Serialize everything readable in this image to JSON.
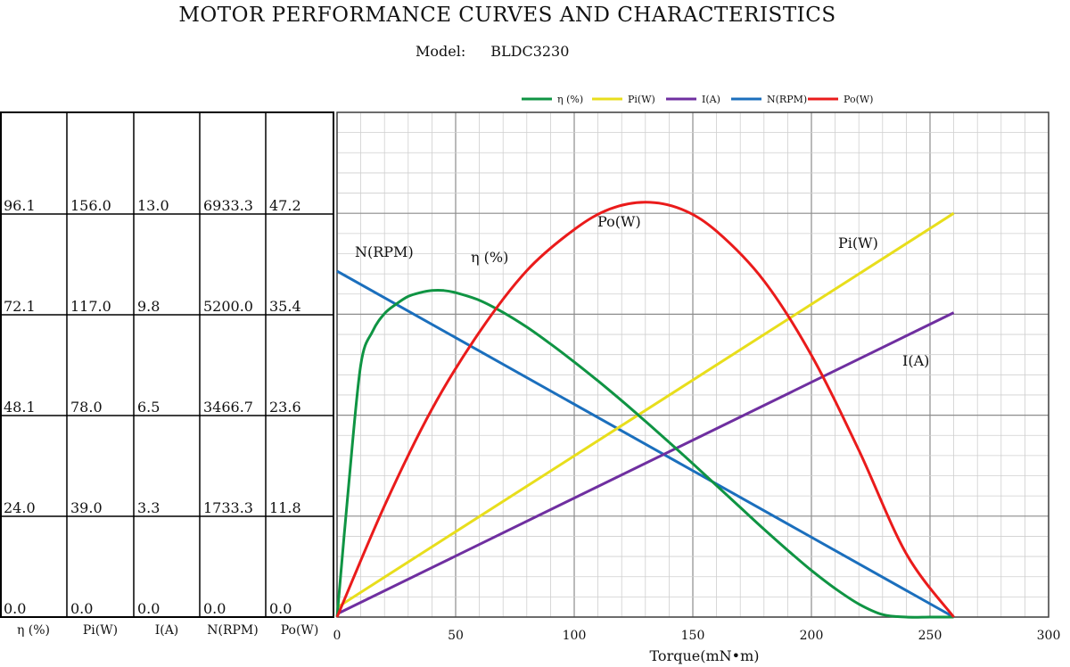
{
  "header": {
    "title": "MOTOR PERFORMANCE CURVES AND CHARACTERISTICS",
    "model_label": "Model:",
    "model_value": "BLDC3230"
  },
  "colors": {
    "efficiency": "#0f9443",
    "input_power": "#e8de1c",
    "current": "#6f2fa0",
    "speed": "#1b6fbd",
    "output_power": "#ea1b1b"
  },
  "legend": [
    "η (%)",
    "Pi(W)",
    "I(A)",
    "N(RPM)",
    "Po(W)"
  ],
  "value_table": {
    "columns": [
      "η (%)",
      "Pi(W)",
      "I(A)",
      "N(RPM)",
      "Po(W)"
    ],
    "rows": [
      [
        "96.1",
        "156.0",
        "13.0",
        "6933.3",
        "47.2"
      ],
      [
        "72.1",
        "117.0",
        "9.8",
        "5200.0",
        "35.4"
      ],
      [
        "48.1",
        "78.0",
        "6.5",
        "3466.7",
        "23.6"
      ],
      [
        "24.0",
        "39.0",
        "3.3",
        "1733.3",
        "11.8"
      ],
      [
        "0.0",
        "0.0",
        "0.0",
        "0.0",
        "0.0"
      ]
    ]
  },
  "chart_data": {
    "type": "line",
    "title": "MOTOR PERFORMANCE CURVES AND CHARACTERISTICS",
    "subtitle": "Model: BLDC3230",
    "xlabel": "Torque(mN•m)",
    "xlim": [
      0,
      300
    ],
    "x_ticks": [
      "0",
      "50",
      "100",
      "150",
      "200",
      "250",
      "300"
    ],
    "grid": true,
    "legend_position": "top",
    "series": [
      {
        "name": "η (%)",
        "label": "η (%)",
        "ylim": [
          0,
          120.1
        ],
        "points": [
          [
            0,
            0
          ],
          [
            5,
            32
          ],
          [
            10,
            60
          ],
          [
            15,
            68
          ],
          [
            20,
            72.2
          ],
          [
            25,
            74.5
          ],
          [
            30,
            76.3
          ],
          [
            35,
            77.2
          ],
          [
            40,
            77.7
          ],
          [
            45,
            77.7
          ],
          [
            50,
            77.2
          ],
          [
            60,
            75.4
          ],
          [
            70,
            72.5
          ],
          [
            80,
            69
          ],
          [
            90,
            65
          ],
          [
            100,
            60.7
          ],
          [
            110,
            56.2
          ],
          [
            120,
            51.5
          ],
          [
            130,
            46.6
          ],
          [
            140,
            41.6
          ],
          [
            150,
            36.5
          ],
          [
            160,
            31.3
          ],
          [
            170,
            26.1
          ],
          [
            180,
            20.9
          ],
          [
            190,
            15.9
          ],
          [
            200,
            11.1
          ],
          [
            210,
            6.8
          ],
          [
            220,
            3.1
          ],
          [
            230,
            0.6
          ],
          [
            240,
            -0.7
          ],
          [
            250,
            -1
          ],
          [
            260,
            -2.5
          ]
        ]
      },
      {
        "name": "Pi(W)",
        "label": "Pi(W)",
        "ylim": [
          0,
          195
        ],
        "points": [
          [
            0,
            3.7
          ],
          [
            260,
            156
          ]
        ]
      },
      {
        "name": "I(A)",
        "label": "I(A)",
        "ylim": [
          0,
          16.25
        ],
        "points": [
          [
            0,
            0.1
          ],
          [
            260,
            9.8
          ]
        ]
      },
      {
        "name": "N(RPM)",
        "label": "N(RPM)",
        "ylim": [
          0,
          8666.7
        ],
        "points": [
          [
            0,
            5940
          ],
          [
            260,
            0
          ]
        ]
      },
      {
        "name": "Po(W)",
        "label": "Po(W)",
        "ylim": [
          0,
          59
        ],
        "points": [
          [
            0,
            0
          ],
          [
            20,
            13
          ],
          [
            40,
            24.3
          ],
          [
            60,
            33.3
          ],
          [
            80,
            40.5
          ],
          [
            100,
            45.3
          ],
          [
            115,
            47.7
          ],
          [
            130,
            48.5
          ],
          [
            145,
            47.7
          ],
          [
            160,
            45.1
          ],
          [
            180,
            39.3
          ],
          [
            200,
            30.6
          ],
          [
            220,
            19.5
          ],
          [
            240,
            7.4
          ],
          [
            260,
            0
          ]
        ]
      }
    ]
  }
}
